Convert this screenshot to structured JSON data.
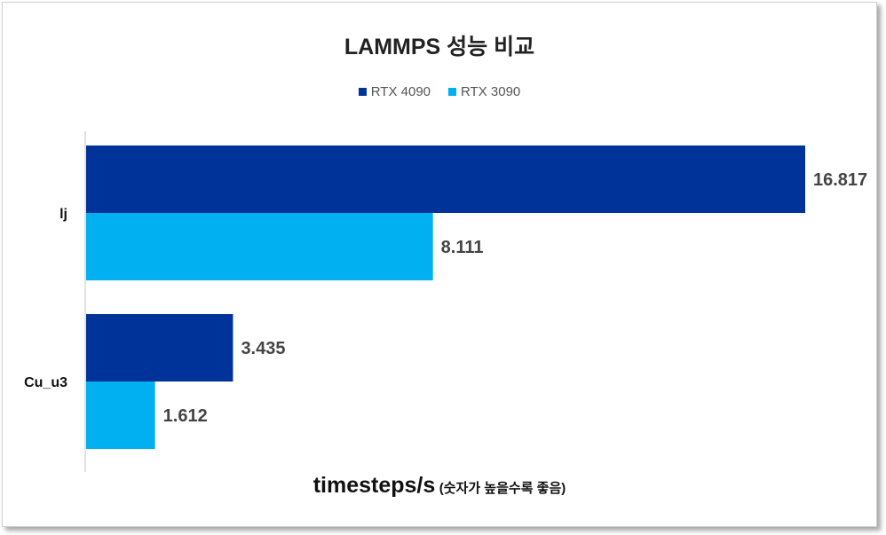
{
  "chart_data": {
    "type": "bar",
    "orientation": "horizontal",
    "title": "LAMMPS 성능 비교",
    "xlabel": "timesteps/s",
    "xlabel_note": "(숫자가 높을수록 좋음)",
    "ylabel": "",
    "categories": [
      "lj",
      "Cu_u3"
    ],
    "series": [
      {
        "name": "RTX 4090",
        "color": "#003399",
        "values": [
          16.817,
          3.435
        ],
        "labels": [
          "16.817",
          "3.435"
        ]
      },
      {
        "name": "RTX 3090",
        "color": "#00B0F0",
        "values": [
          8.111,
          1.612
        ],
        "labels": [
          "8.111",
          "1.612"
        ]
      }
    ],
    "xlim": [
      0,
      16.817
    ],
    "grid": false,
    "legend_position": "top",
    "data_labels": true
  }
}
